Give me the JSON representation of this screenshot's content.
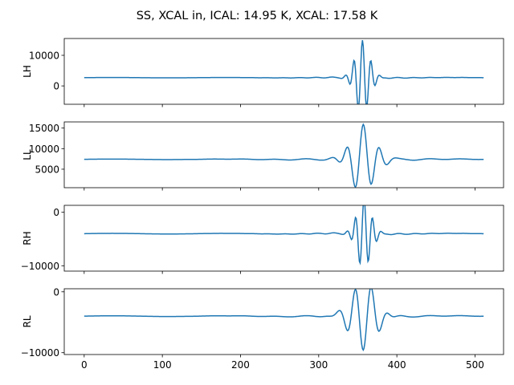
{
  "figure": {
    "title": "SS, XCAL in, ICAL: 14.95 K, XCAL: 17.58 K"
  },
  "colors": {
    "series": "#1f77b4",
    "axes": "#000000",
    "background": "#ffffff"
  },
  "chart_data": [
    {
      "type": "line",
      "ylabel": "LH",
      "xlim": [
        -25.5,
        536.5
      ],
      "ylim": [
        -6000,
        15500
      ],
      "yticks": [
        0,
        10000
      ],
      "ytick_labels": [
        "0",
        "10000"
      ],
      "show_xtick_labels": false,
      "grid": false,
      "series": [
        {
          "baseline": 2700,
          "center": 356,
          "amp": 12000,
          "wavelength": 11,
          "decay": 9,
          "ripple": 350,
          "ripple_decay": 45,
          "length": 512
        }
      ]
    },
    {
      "type": "line",
      "ylabel": "LL",
      "xlim": [
        -25.5,
        536.5
      ],
      "ylim": [
        500,
        16500
      ],
      "yticks": [
        5000,
        10000,
        15000
      ],
      "ytick_labels": [
        "5000",
        "10000",
        "15000"
      ],
      "show_xtick_labels": false,
      "grid": false,
      "series": [
        {
          "baseline": 7400,
          "center": 357,
          "amp": 8100,
          "wavelength": 21,
          "decay": 15,
          "ripple": 600,
          "ripple_decay": 55,
          "length": 512
        }
      ]
    },
    {
      "type": "line",
      "ylabel": "RH",
      "xlim": [
        -25.5,
        536.5
      ],
      "ylim": [
        -11000,
        1300
      ],
      "yticks": [
        -10000,
        0
      ],
      "ytick_labels": [
        "−10000",
        "0"
      ],
      "show_xtick_labels": false,
      "grid": false,
      "series": [
        {
          "baseline": -4000,
          "center": 358,
          "amp": 6500,
          "wavelength": 11,
          "decay": 9,
          "ripple": 250,
          "ripple_decay": 45,
          "length": 512
        }
      ]
    },
    {
      "type": "line",
      "ylabel": "RL",
      "xlim": [
        -25.5,
        536.5
      ],
      "ylim": [
        -10300,
        500
      ],
      "yticks": [
        -10000,
        0
      ],
      "ytick_labels": [
        "−10000",
        "0"
      ],
      "show_xtick_labels": true,
      "xticks": [
        0,
        100,
        200,
        300,
        400,
        500
      ],
      "xtick_labels": [
        "0",
        "100",
        "200",
        "300",
        "400",
        "500"
      ],
      "grid": false,
      "series": [
        {
          "baseline": -4000,
          "center": 357,
          "amp": -5800,
          "wavelength": 21,
          "decay": 15,
          "ripple": 350,
          "ripple_decay": 55,
          "length": 512
        }
      ]
    }
  ]
}
